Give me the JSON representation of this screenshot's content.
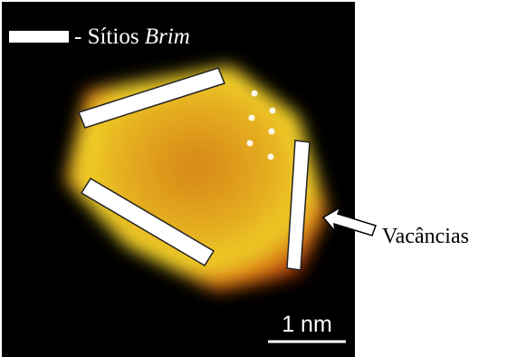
{
  "legend": {
    "text": "- Sítios",
    "italic": "Brim"
  },
  "annotation": "Vacâncias",
  "scale_bar": "1 nm"
}
